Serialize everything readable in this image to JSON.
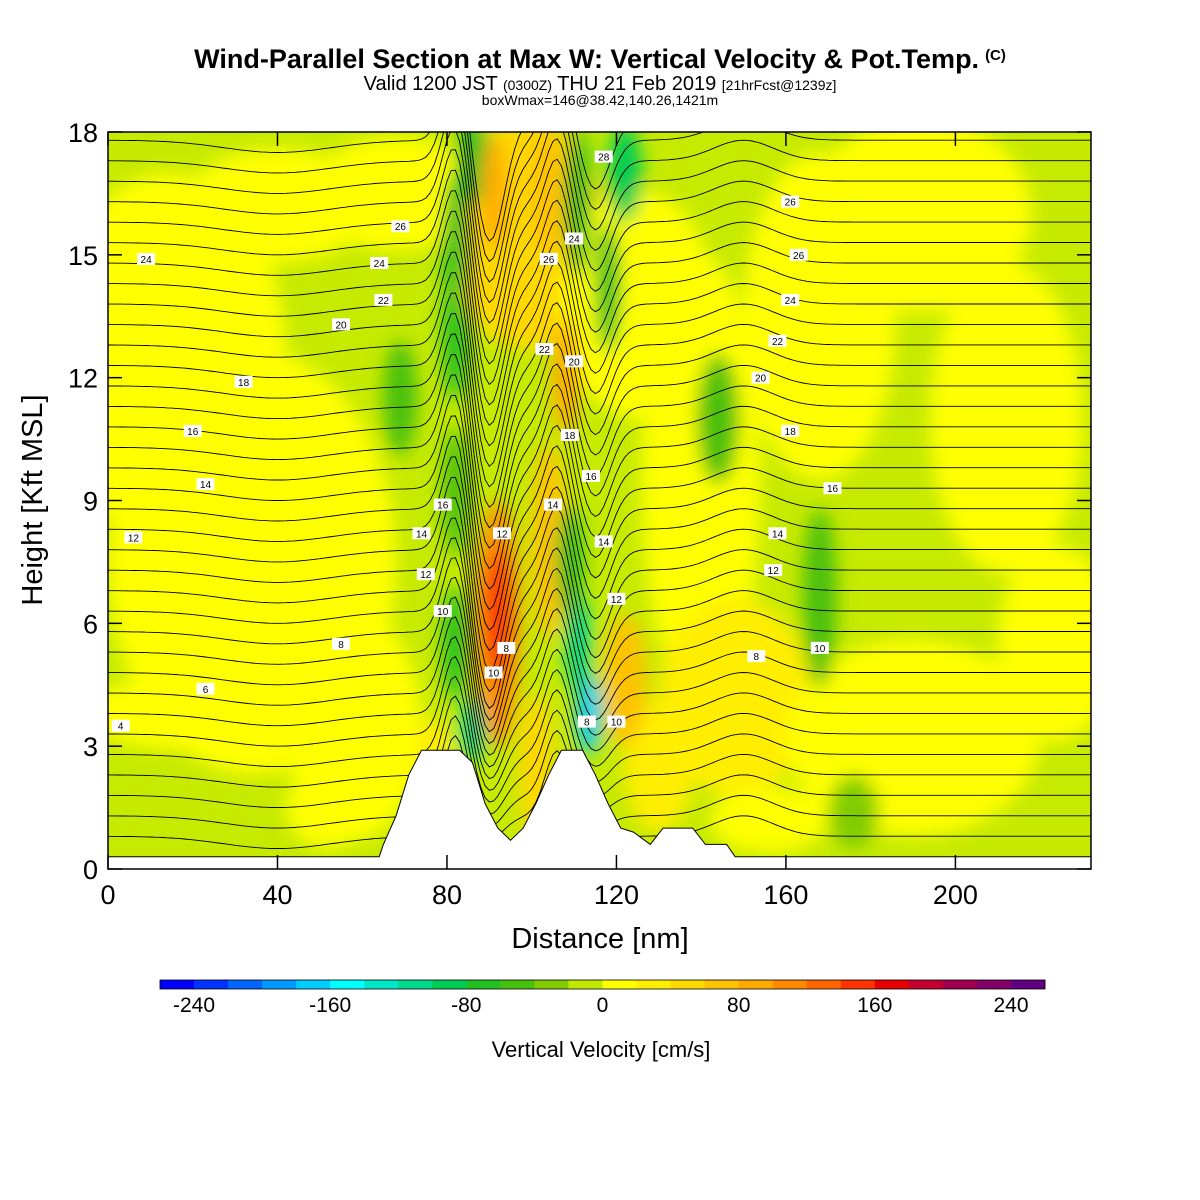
{
  "header": {
    "title_main": "Wind-Parallel Section at Max W: Vertical Velocity & Pot.Temp.",
    "title_copyright": "(C)",
    "valid_prefix": "Valid 1200 JST",
    "valid_utc": "(0300Z)",
    "valid_date": "THU 21 Feb 2019",
    "valid_fcst": "[21hrFcst@1239z]",
    "box_info": "boxWmax=146@38.42,140.26,1421m"
  },
  "chart_data": {
    "type": "contour-section",
    "xlabel": "Distance [nm]",
    "ylabel": "Height [Kft MSL]",
    "xlim": [
      0,
      232
    ],
    "ylim": [
      0,
      18
    ],
    "xticks": [
      0,
      40,
      80,
      120,
      160,
      200
    ],
    "yticks": [
      0,
      3,
      6,
      9,
      12,
      15,
      18
    ],
    "terrain_profile": [
      [
        0,
        0.3
      ],
      [
        64,
        0.3
      ],
      [
        65,
        0.6
      ],
      [
        68,
        1.3
      ],
      [
        71,
        2.3
      ],
      [
        74,
        2.9
      ],
      [
        83,
        2.9
      ],
      [
        86,
        2.6
      ],
      [
        89,
        1.6
      ],
      [
        92,
        1.0
      ],
      [
        95,
        0.7
      ],
      [
        98,
        1.0
      ],
      [
        101,
        1.6
      ],
      [
        104,
        2.3
      ],
      [
        107,
        2.9
      ],
      [
        112,
        2.9
      ],
      [
        115,
        2.3
      ],
      [
        118,
        1.6
      ],
      [
        121,
        1.0
      ],
      [
        124,
        0.9
      ],
      [
        128,
        0.6
      ],
      [
        131,
        1.0
      ],
      [
        138,
        1.0
      ],
      [
        141,
        0.6
      ],
      [
        146,
        0.6
      ],
      [
        148,
        0.3
      ],
      [
        232,
        0.3
      ]
    ],
    "vertical_velocity_features": [
      {
        "x": 90,
        "y": 6.0,
        "value": 140
      },
      {
        "x": 86,
        "y": 16.0,
        "value": -90
      },
      {
        "x": 112,
        "y": 4.5,
        "value": -180
      },
      {
        "x": 118,
        "y": 15.5,
        "value": -110
      },
      {
        "x": 104,
        "y": 10.0,
        "value": 60
      },
      {
        "x": 76,
        "y": 8.0,
        "value": -70
      },
      {
        "x": 168,
        "y": 7.0,
        "value": -60
      },
      {
        "x": 144,
        "y": 11.0,
        "value": -50
      }
    ],
    "theta_contour_labels": [
      {
        "x": 3,
        "y": 3.5,
        "text": "4"
      },
      {
        "x": 23,
        "y": 4.4,
        "text": "6"
      },
      {
        "x": 55,
        "y": 5.5,
        "text": "8"
      },
      {
        "x": 6,
        "y": 8.1,
        "text": "12"
      },
      {
        "x": 23,
        "y": 9.4,
        "text": "14"
      },
      {
        "x": 20,
        "y": 10.7,
        "text": "16"
      },
      {
        "x": 32,
        "y": 11.9,
        "text": "18"
      },
      {
        "x": 55,
        "y": 13.3,
        "text": "20"
      },
      {
        "x": 65,
        "y": 13.9,
        "text": "22"
      },
      {
        "x": 64,
        "y": 14.8,
        "text": "24"
      },
      {
        "x": 9,
        "y": 14.9,
        "text": "24"
      },
      {
        "x": 69,
        "y": 15.7,
        "text": "26"
      },
      {
        "x": 79,
        "y": 6.3,
        "text": "10"
      },
      {
        "x": 75,
        "y": 7.2,
        "text": "12"
      },
      {
        "x": 74,
        "y": 8.2,
        "text": "14"
      },
      {
        "x": 79,
        "y": 8.9,
        "text": "16"
      },
      {
        "x": 91,
        "y": 4.8,
        "text": "10"
      },
      {
        "x": 94,
        "y": 5.4,
        "text": "8"
      },
      {
        "x": 93,
        "y": 8.2,
        "text": "12"
      },
      {
        "x": 105,
        "y": 8.9,
        "text": "14"
      },
      {
        "x": 113,
        "y": 3.6,
        "text": "8"
      },
      {
        "x": 120,
        "y": 3.6,
        "text": "10"
      },
      {
        "x": 120,
        "y": 6.6,
        "text": "12"
      },
      {
        "x": 117,
        "y": 8.0,
        "text": "14"
      },
      {
        "x": 114,
        "y": 9.6,
        "text": "16"
      },
      {
        "x": 109,
        "y": 10.6,
        "text": "18"
      },
      {
        "x": 110,
        "y": 12.4,
        "text": "20"
      },
      {
        "x": 103,
        "y": 12.7,
        "text": "22"
      },
      {
        "x": 104,
        "y": 14.9,
        "text": "26"
      },
      {
        "x": 110,
        "y": 15.4,
        "text": "24"
      },
      {
        "x": 117,
        "y": 17.4,
        "text": "28"
      },
      {
        "x": 153,
        "y": 5.2,
        "text": "8"
      },
      {
        "x": 168,
        "y": 5.4,
        "text": "10"
      },
      {
        "x": 157,
        "y": 7.3,
        "text": "12"
      },
      {
        "x": 158,
        "y": 8.2,
        "text": "14"
      },
      {
        "x": 171,
        "y": 9.3,
        "text": "16"
      },
      {
        "x": 161,
        "y": 10.7,
        "text": "18"
      },
      {
        "x": 154,
        "y": 12.0,
        "text": "20"
      },
      {
        "x": 158,
        "y": 12.9,
        "text": "22"
      },
      {
        "x": 161,
        "y": 13.9,
        "text": "24"
      },
      {
        "x": 163,
        "y": 15.0,
        "text": "26"
      },
      {
        "x": 161,
        "y": 16.3,
        "text": "26"
      }
    ]
  },
  "colorbar": {
    "label": "Vertical Velocity [cm/s]",
    "tick_labels": [
      "-240",
      "-160",
      "-80",
      "0",
      "80",
      "160",
      "240"
    ],
    "colors": [
      "#0000ff",
      "#0033ff",
      "#0066ff",
      "#0099ff",
      "#00ccff",
      "#00ffff",
      "#00e6c8",
      "#00d98c",
      "#00cc55",
      "#20c020",
      "#48c010",
      "#80cc00",
      "#c0e800",
      "#ffff00",
      "#ffee00",
      "#ffd800",
      "#ffc200",
      "#ffaa00",
      "#ff8a00",
      "#ff6600",
      "#ff3300",
      "#e60000",
      "#c40030",
      "#a00050",
      "#800068",
      "#600080"
    ]
  }
}
